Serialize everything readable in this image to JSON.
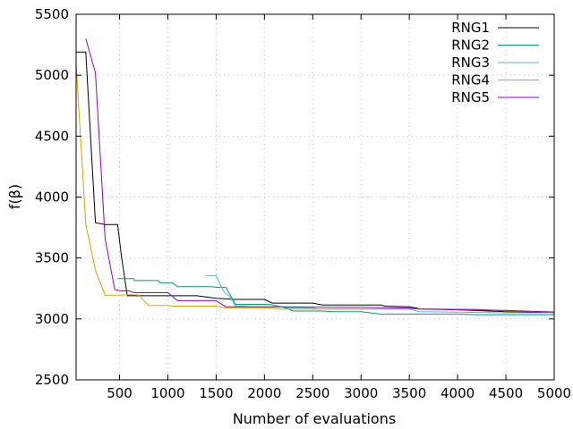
{
  "chart_data": {
    "type": "line",
    "xlabel": "Number of evaluations",
    "ylabel": "f(β)",
    "xlim": [
      50,
      5000
    ],
    "ylim": [
      2500,
      5500
    ],
    "x_ticks": [
      500,
      1000,
      1500,
      2000,
      2500,
      3000,
      3500,
      4000,
      4500,
      5000
    ],
    "y_ticks": [
      2500,
      3000,
      3500,
      4000,
      4500,
      5000,
      5500
    ],
    "grid": true,
    "legend_position": "top-right",
    "series": [
      {
        "name": "RNG1",
        "color": "#000000",
        "points": [
          [
            50,
            5190
          ],
          [
            150,
            5190
          ],
          [
            150,
            5190
          ],
          [
            250,
            3790
          ],
          [
            350,
            3775
          ],
          [
            480,
            3775
          ],
          [
            520,
            3510
          ],
          [
            580,
            3190
          ],
          [
            1300,
            3190
          ],
          [
            1500,
            3170
          ],
          [
            1700,
            3160
          ],
          [
            2000,
            3160
          ],
          [
            2080,
            3130
          ],
          [
            2500,
            3130
          ],
          [
            2600,
            3115
          ],
          [
            3200,
            3115
          ],
          [
            3250,
            3105
          ],
          [
            3500,
            3100
          ],
          [
            3600,
            3085
          ],
          [
            4000,
            3075
          ],
          [
            4500,
            3060
          ],
          [
            5000,
            3055
          ]
        ]
      },
      {
        "name": "RNG2",
        "color": "#009E73",
        "points": [
          [
            480,
            3330
          ],
          [
            650,
            3330
          ],
          [
            650,
            3315
          ],
          [
            900,
            3315
          ],
          [
            920,
            3295
          ],
          [
            1050,
            3295
          ],
          [
            1100,
            3265
          ],
          [
            1450,
            3265
          ],
          [
            1500,
            3260
          ],
          [
            1600,
            3260
          ],
          [
            1700,
            3120
          ],
          [
            2050,
            3120
          ],
          [
            2200,
            3095
          ],
          [
            2300,
            3065
          ],
          [
            2600,
            3065
          ],
          [
            2700,
            3060
          ],
          [
            3000,
            3060
          ],
          [
            3200,
            3040
          ],
          [
            4000,
            3040
          ],
          [
            4200,
            3035
          ],
          [
            5000,
            3035
          ]
        ]
      },
      {
        "name": "RNG3",
        "color": "#56B4E9",
        "points": [
          [
            1400,
            3355
          ],
          [
            1500,
            3355
          ],
          [
            1580,
            3220
          ],
          [
            1650,
            3175
          ],
          [
            1700,
            3105
          ],
          [
            1800,
            3105
          ],
          [
            1850,
            3100
          ],
          [
            2200,
            3100
          ],
          [
            2250,
            3090
          ],
          [
            2500,
            3090
          ],
          [
            2550,
            3080
          ],
          [
            3500,
            3080
          ],
          [
            3600,
            3060
          ],
          [
            4000,
            3055
          ],
          [
            4500,
            3050
          ],
          [
            5000,
            3050
          ]
        ]
      },
      {
        "name": "RNG4",
        "color": "#E69F00",
        "points": [
          [
            50,
            5100
          ],
          [
            150,
            3780
          ],
          [
            250,
            3400
          ],
          [
            350,
            3195
          ],
          [
            500,
            3195
          ],
          [
            600,
            3200
          ],
          [
            700,
            3195
          ],
          [
            800,
            3110
          ],
          [
            1000,
            3110
          ],
          [
            1050,
            3105
          ],
          [
            1500,
            3105
          ],
          [
            1600,
            3090
          ],
          [
            2100,
            3090
          ],
          [
            2150,
            3080
          ],
          [
            3000,
            3080
          ],
          [
            3400,
            3085
          ],
          [
            4200,
            3080
          ],
          [
            4500,
            3065
          ],
          [
            5000,
            3060
          ]
        ]
      },
      {
        "name": "RNG5",
        "color": "#9400D3",
        "points": [
          [
            150,
            5300
          ],
          [
            250,
            5020
          ],
          [
            350,
            3660
          ],
          [
            450,
            3240
          ],
          [
            520,
            3230
          ],
          [
            600,
            3230
          ],
          [
            650,
            3215
          ],
          [
            1000,
            3215
          ],
          [
            1100,
            3150
          ],
          [
            1500,
            3150
          ],
          [
            1600,
            3100
          ],
          [
            2000,
            3100
          ],
          [
            2100,
            3100
          ],
          [
            2700,
            3095
          ],
          [
            3000,
            3095
          ],
          [
            3500,
            3090
          ],
          [
            3600,
            3080
          ],
          [
            4500,
            3070
          ],
          [
            5000,
            3055
          ]
        ]
      }
    ]
  }
}
